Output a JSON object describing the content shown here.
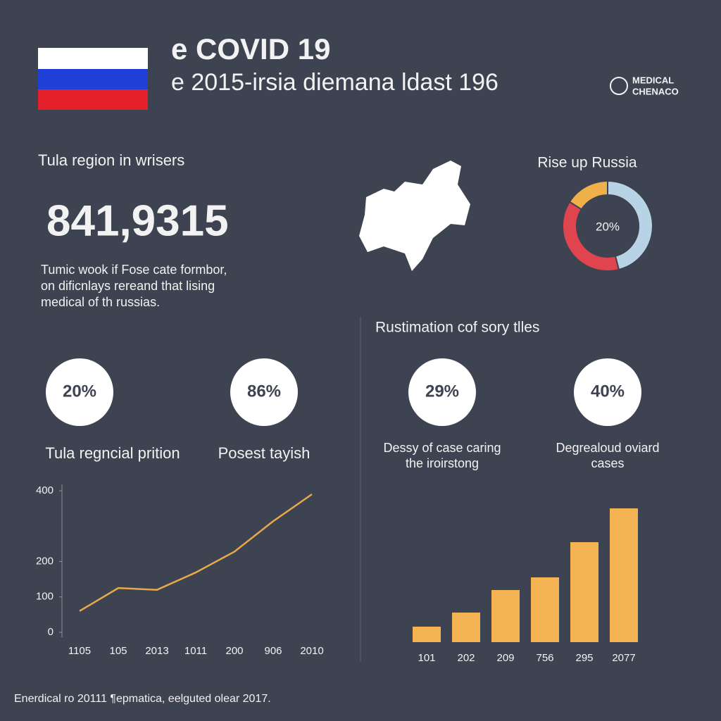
{
  "header": {
    "title": "e COVID 19",
    "subtitle": "e 2015-irsia diemana ldast 196",
    "logo": [
      "MEDICAL",
      "CHENACO"
    ]
  },
  "summary": {
    "heading": "Tula region in wrisers",
    "figure": "841,9315",
    "text": [
      "Tumic wook if Fose cate formbor,",
      "on dificnlays rereand that lising",
      "medical of th russias."
    ]
  },
  "section_heading": "Rustimation cof sory tlles",
  "stats": [
    {
      "value": "20%",
      "label": [
        "Tula regncial prition"
      ]
    },
    {
      "value": "86%",
      "label": [
        "Posest tayish"
      ]
    },
    {
      "value": "29%",
      "label": [
        "Dessy of case caring",
        "the iroirstong"
      ]
    },
    {
      "value": "40%",
      "label": [
        "Degrealoud oviard",
        "cases"
      ]
    }
  ],
  "chart_data": [
    {
      "type": "pie",
      "title": "Rise up Russia",
      "center_label": "20%",
      "values": [
        16,
        46,
        38
      ],
      "colors": [
        "#f0b04a",
        "#b9d3e6",
        "#e0454f"
      ]
    },
    {
      "type": "line",
      "categories": [
        "1105",
        "105",
        "2013",
        "1011",
        "200",
        "906",
        "2010"
      ],
      "values": [
        60,
        125,
        120,
        169,
        228,
        314,
        390
      ],
      "color": "#e8a94a",
      "ylim": [
        0,
        400
      ],
      "yticks": [
        0,
        100,
        200,
        400
      ]
    },
    {
      "type": "bar",
      "categories": [
        "101",
        "202",
        "209",
        "756",
        "295",
        "2077"
      ],
      "values": [
        22,
        42,
        74,
        92,
        142,
        190
      ],
      "color": "#f5b453"
    }
  ],
  "footer": "Enerdical ro 20111 ¶epmatica, eelguted olear 2017."
}
